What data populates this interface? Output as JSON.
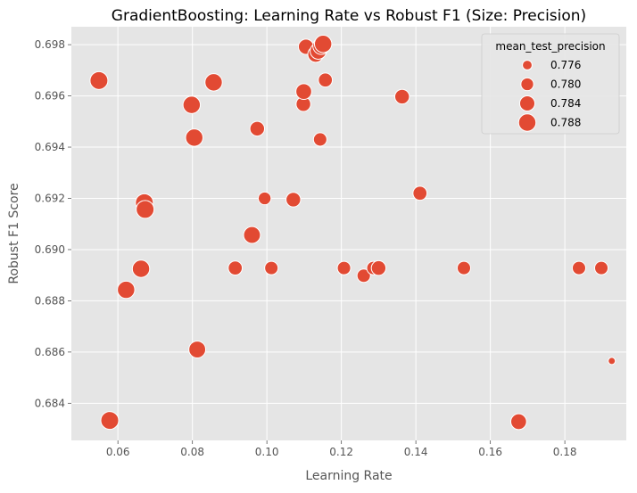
{
  "chart_data": {
    "type": "scatter",
    "title": "GradientBoosting: Learning Rate vs Robust F1 (Size: Precision)",
    "xlabel": "Learning Rate",
    "ylabel": "Robust F1 Score",
    "xlim": [
      0.0475,
      0.1965
    ],
    "ylim": [
      0.68255,
      0.6987
    ],
    "xticks": [
      {
        "value": 0.06,
        "label": "0.06"
      },
      {
        "value": 0.08,
        "label": "0.08"
      },
      {
        "value": 0.1,
        "label": "0.10"
      },
      {
        "value": 0.12,
        "label": "0.12"
      },
      {
        "value": 0.14,
        "label": "0.14"
      },
      {
        "value": 0.16,
        "label": "0.16"
      },
      {
        "value": 0.18,
        "label": "0.18"
      }
    ],
    "yticks": [
      {
        "value": 0.684,
        "label": "0.684"
      },
      {
        "value": 0.686,
        "label": "0.686"
      },
      {
        "value": 0.688,
        "label": "0.688"
      },
      {
        "value": 0.69,
        "label": "0.690"
      },
      {
        "value": 0.692,
        "label": "0.692"
      },
      {
        "value": 0.694,
        "label": "0.694"
      },
      {
        "value": 0.696,
        "label": "0.696"
      },
      {
        "value": 0.698,
        "label": "0.698"
      }
    ],
    "grid": true,
    "legend": {
      "title": "mean_test_precision",
      "position": "top-right",
      "entries": [
        {
          "label": "0.776",
          "size_value": 0.776
        },
        {
          "label": "0.780",
          "size_value": 0.78
        },
        {
          "label": "0.784",
          "size_value": 0.784
        },
        {
          "label": "0.788",
          "size_value": 0.788
        }
      ]
    },
    "size_range": [
      0.7735,
      0.789
    ],
    "colors": {
      "point": "#E24A33",
      "point_edge": "#ffffff",
      "plot_bg": "#E5E5E5",
      "grid": "#ffffff",
      "text": "#555555",
      "title": "#000000"
    },
    "points": [
      {
        "x": 0.0549,
        "y": 0.6966,
        "size": 0.789
      },
      {
        "x": 0.0578,
        "y": 0.68333,
        "size": 0.789
      },
      {
        "x": 0.0622,
        "y": 0.68843,
        "size": 0.788
      },
      {
        "x": 0.0662,
        "y": 0.68925,
        "size": 0.788
      },
      {
        "x": 0.0671,
        "y": 0.69183,
        "size": 0.789
      },
      {
        "x": 0.0673,
        "y": 0.69157,
        "size": 0.789
      },
      {
        "x": 0.0798,
        "y": 0.69565,
        "size": 0.788
      },
      {
        "x": 0.0805,
        "y": 0.69437,
        "size": 0.788
      },
      {
        "x": 0.0813,
        "y": 0.6861,
        "size": 0.787
      },
      {
        "x": 0.0857,
        "y": 0.69653,
        "size": 0.788
      },
      {
        "x": 0.0915,
        "y": 0.68928,
        "size": 0.782
      },
      {
        "x": 0.096,
        "y": 0.69057,
        "size": 0.787
      },
      {
        "x": 0.0974,
        "y": 0.69472,
        "size": 0.783
      },
      {
        "x": 0.0994,
        "y": 0.692,
        "size": 0.78
      },
      {
        "x": 0.1012,
        "y": 0.68928,
        "size": 0.781
      },
      {
        "x": 0.1071,
        "y": 0.69195,
        "size": 0.783
      },
      {
        "x": 0.1098,
        "y": 0.69568,
        "size": 0.783
      },
      {
        "x": 0.1099,
        "y": 0.69617,
        "size": 0.785
      },
      {
        "x": 0.1105,
        "y": 0.69792,
        "size": 0.784
      },
      {
        "x": 0.1131,
        "y": 0.69762,
        "size": 0.785
      },
      {
        "x": 0.1138,
        "y": 0.69775,
        "size": 0.786
      },
      {
        "x": 0.1143,
        "y": 0.6943,
        "size": 0.781
      },
      {
        "x": 0.1146,
        "y": 0.69795,
        "size": 0.787
      },
      {
        "x": 0.1151,
        "y": 0.69803,
        "size": 0.788
      },
      {
        "x": 0.1157,
        "y": 0.69662,
        "size": 0.782
      },
      {
        "x": 0.1207,
        "y": 0.68928,
        "size": 0.781
      },
      {
        "x": 0.126,
        "y": 0.68898,
        "size": 0.781
      },
      {
        "x": 0.1286,
        "y": 0.68928,
        "size": 0.781
      },
      {
        "x": 0.13,
        "y": 0.68928,
        "size": 0.783
      },
      {
        "x": 0.1363,
        "y": 0.69597,
        "size": 0.783
      },
      {
        "x": 0.1411,
        "y": 0.6922,
        "size": 0.782
      },
      {
        "x": 0.1529,
        "y": 0.68928,
        "size": 0.781
      },
      {
        "x": 0.1676,
        "y": 0.68328,
        "size": 0.785
      },
      {
        "x": 0.1838,
        "y": 0.68928,
        "size": 0.781
      },
      {
        "x": 0.1898,
        "y": 0.68928,
        "size": 0.781
      },
      {
        "x": 0.1926,
        "y": 0.68565,
        "size": 0.7735
      }
    ]
  }
}
